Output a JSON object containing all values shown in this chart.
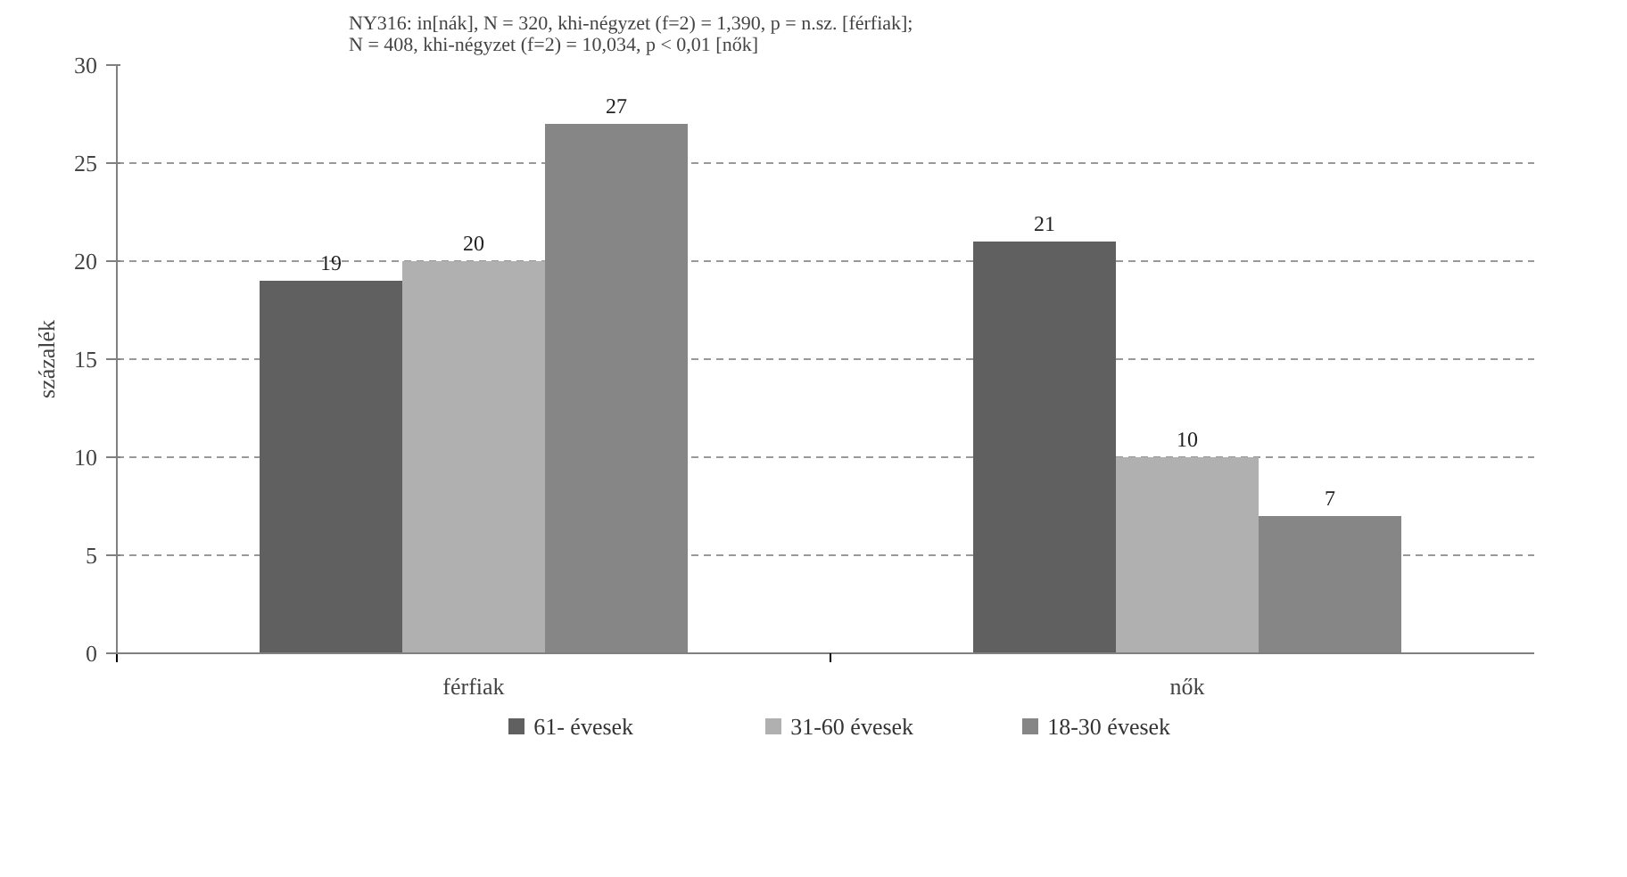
{
  "chart_data": {
    "type": "bar",
    "title": "NY316: in[nák], N = 320, khi-négyzet (f=2) = 1,390, p = n.sz. [férfiak];\nN = 408, khi-négyzet (f=2) = 10,034, p < 0,01 [nők]",
    "ylabel": "százalék",
    "categories": [
      "férfiak",
      "nők"
    ],
    "series": [
      {
        "name": "61- évesek",
        "color": "#606060",
        "values": [
          19,
          21
        ]
      },
      {
        "name": "31-60 évesek",
        "color": "#b0b0b0",
        "values": [
          20,
          10
        ]
      },
      {
        "name": "18-30 évesek",
        "color": "#868686",
        "values": [
          27,
          7
        ]
      }
    ],
    "ylim": [
      0,
      30
    ],
    "yticks": [
      0,
      5,
      10,
      15,
      20,
      25,
      30
    ],
    "grid": "y",
    "legend": "bottom",
    "data_labels": true
  }
}
